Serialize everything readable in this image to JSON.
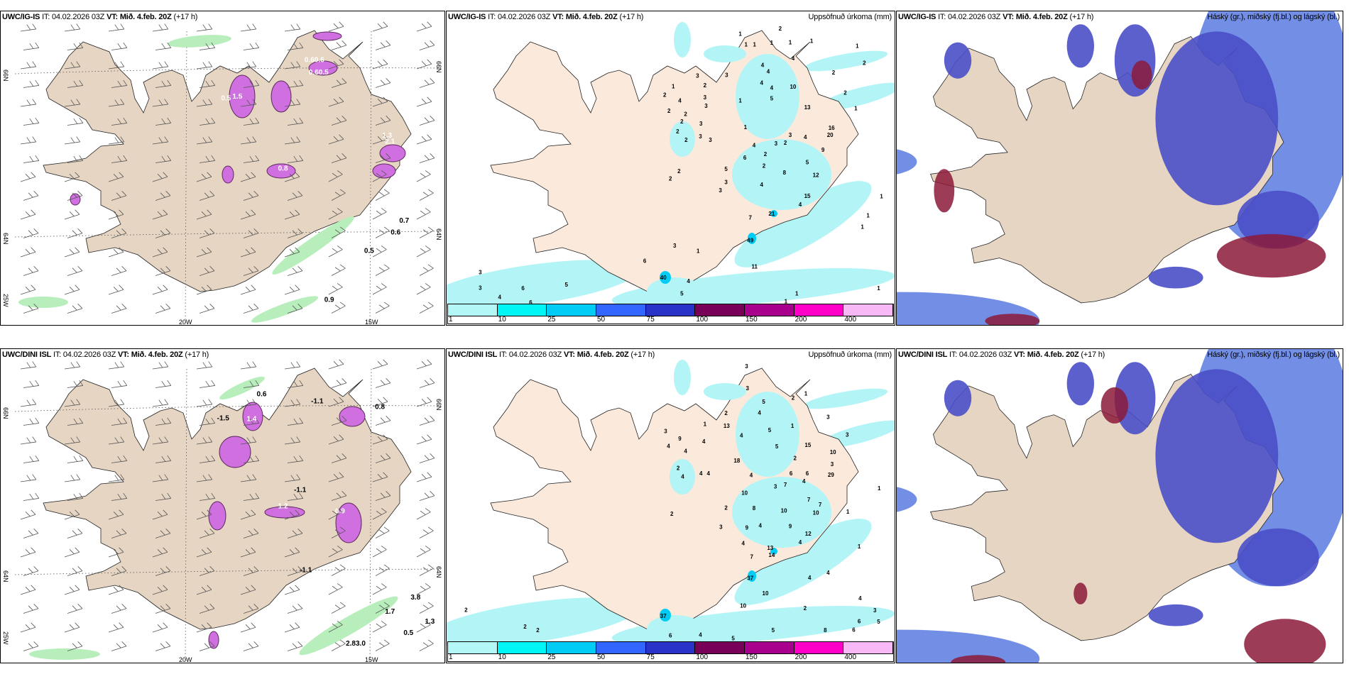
{
  "panels": [
    {
      "id": "igis-wind",
      "model": "UWC/IG-IS",
      "it_label": "IT:",
      "it": "04.02.2026 03Z",
      "vt_label": "VT:",
      "vt": "Mið. 4.feb. 20Z",
      "lead": "(+17 h)",
      "right_title": "",
      "grid_labels": {
        "lat_left": [
          "66N",
          "64N"
        ],
        "lat_right": [
          "66N",
          "64N"
        ],
        "lon_bottom": [
          "20W",
          "15W"
        ],
        "lon_left": "25W"
      },
      "labels": [
        "0.7",
        "0.6",
        "0.5",
        "0.9",
        "0.60.6",
        "0.60.5",
        "1.3",
        "2.1",
        "0.8",
        "1.5",
        "0.5"
      ]
    },
    {
      "id": "igis-precip",
      "model": "UWC/IG-IS",
      "it_label": "IT:",
      "it": "04.02.2026 03Z",
      "vt_label": "VT:",
      "vt": "Mið. 4.feb. 20Z",
      "lead": "(+17 h)",
      "right_title": "Uppsöfnuð úrkoma (mm)",
      "labels": [
        "2",
        "1",
        "1",
        "1",
        "1",
        "1",
        "1",
        "1",
        "4",
        "2",
        "4",
        "4",
        "2",
        "3",
        "3",
        "2",
        "1",
        "4",
        "4",
        "10",
        "2",
        "2",
        "4",
        "3",
        "1",
        "5",
        "3",
        "13",
        "1",
        "2",
        "2",
        "2",
        "3",
        "1",
        "16",
        "2",
        "3",
        "20",
        "3",
        "3",
        "2",
        "4",
        "3",
        "2",
        "4",
        "9",
        "2",
        "6",
        "5",
        "2",
        "5",
        "8",
        "2",
        "12",
        "2",
        "3",
        "4",
        "3",
        "15",
        "1",
        "4",
        "21",
        "1",
        "7",
        "1",
        "49",
        "3",
        "1",
        "6",
        "11",
        "3",
        "40",
        "4",
        "3",
        "6",
        "5",
        "1",
        "4",
        "1",
        "5",
        "6",
        "1"
      ]
    },
    {
      "id": "igis-cloud",
      "model": "UWC/IG-IS",
      "it_label": "IT:",
      "it": "04.02.2026 03Z",
      "vt_label": "VT:",
      "vt": "Mið. 4.feb. 20Z",
      "lead": "(+17 h)",
      "right_title": "Háský (gr.), miðský (fj.bl.) og lágský (bl.)",
      "labels": []
    },
    {
      "id": "dini-wind",
      "model": "UWC/DINI ISL",
      "it_label": "IT:",
      "it": "04.02.2026 03Z",
      "vt_label": "VT:",
      "vt": "Mið. 4.feb. 20Z",
      "lead": "(+17 h)",
      "right_title": "",
      "grid_labels": {
        "lat_left": [
          "66N",
          "64N"
        ],
        "lat_right": [
          "66N",
          "64N"
        ],
        "lon_bottom": [
          "20W",
          "15W"
        ],
        "lon_left": "25W"
      },
      "labels": [
        "-1.5",
        "0.6",
        "-1.1",
        "0.8",
        "-1.1",
        "-1.1",
        "3.8",
        "1.7",
        "1.3",
        "0.5",
        "2.83.0",
        "1.4",
        "0.9",
        "1.2"
      ]
    },
    {
      "id": "dini-precip",
      "model": "UWC/DINI ISL",
      "it_label": "IT:",
      "it": "04.02.2026 03Z",
      "vt_label": "VT:",
      "vt": "Mið. 4.feb. 20Z",
      "lead": "(+17 h)",
      "right_title": "Uppsöfnuð úrkoma (mm)",
      "labels": [
        "3",
        "3",
        "1",
        "5",
        "2",
        "4",
        "2",
        "3",
        "1",
        "13",
        "1",
        "3",
        "5",
        "4",
        "9",
        "4",
        "3",
        "4",
        "5",
        "15",
        "10",
        "4",
        "2",
        "18",
        "3",
        "2",
        "4",
        "4",
        "4",
        "29",
        "4",
        "6",
        "6",
        "4",
        "3",
        "1",
        "7",
        "10",
        "7",
        "7",
        "2",
        "8",
        "10",
        "1",
        "2",
        "10",
        "3",
        "9",
        "4",
        "9",
        "12",
        "4",
        "1",
        "4",
        "13",
        "14",
        "7",
        "37",
        "4",
        "4",
        "10",
        "4",
        "10",
        "2",
        "3",
        "2",
        "37",
        "6",
        "5",
        "2",
        "2",
        "6",
        "4",
        "5",
        "5",
        "8",
        "6"
      ]
    },
    {
      "id": "dini-cloud",
      "model": "UWC/DINI ISL",
      "it_label": "IT:",
      "it": "04.02.2026 03Z",
      "vt_label": "VT:",
      "vt": "Mið. 4.feb. 20Z",
      "lead": "(+17 h)",
      "right_title": "Háský (gr.), miðský (fj.bl.) og lágský (bl.)",
      "labels": []
    }
  ],
  "colorbar": {
    "labels": [
      "1",
      "10",
      "25",
      "50",
      "75",
      "100",
      "150",
      "200",
      "400"
    ],
    "colors": [
      "#b3f7f7",
      "#00f5f5",
      "#00ccf5",
      "#3366ff",
      "#2a33c8",
      "#780058",
      "#a8008c",
      "#ff00c8",
      "#f7b8f5"
    ]
  },
  "colors": {
    "land_wind": "#e6d5c3",
    "land_precip": "#fbe9dc",
    "precip_light": "#b3f5f7",
    "high_cloud": "#8b1a3a",
    "mid_cloud": "#4a4fc8",
    "low_cloud": "#5b7ae0",
    "snow_purple": "#d070e0",
    "rain_green": "#b8eebc"
  }
}
